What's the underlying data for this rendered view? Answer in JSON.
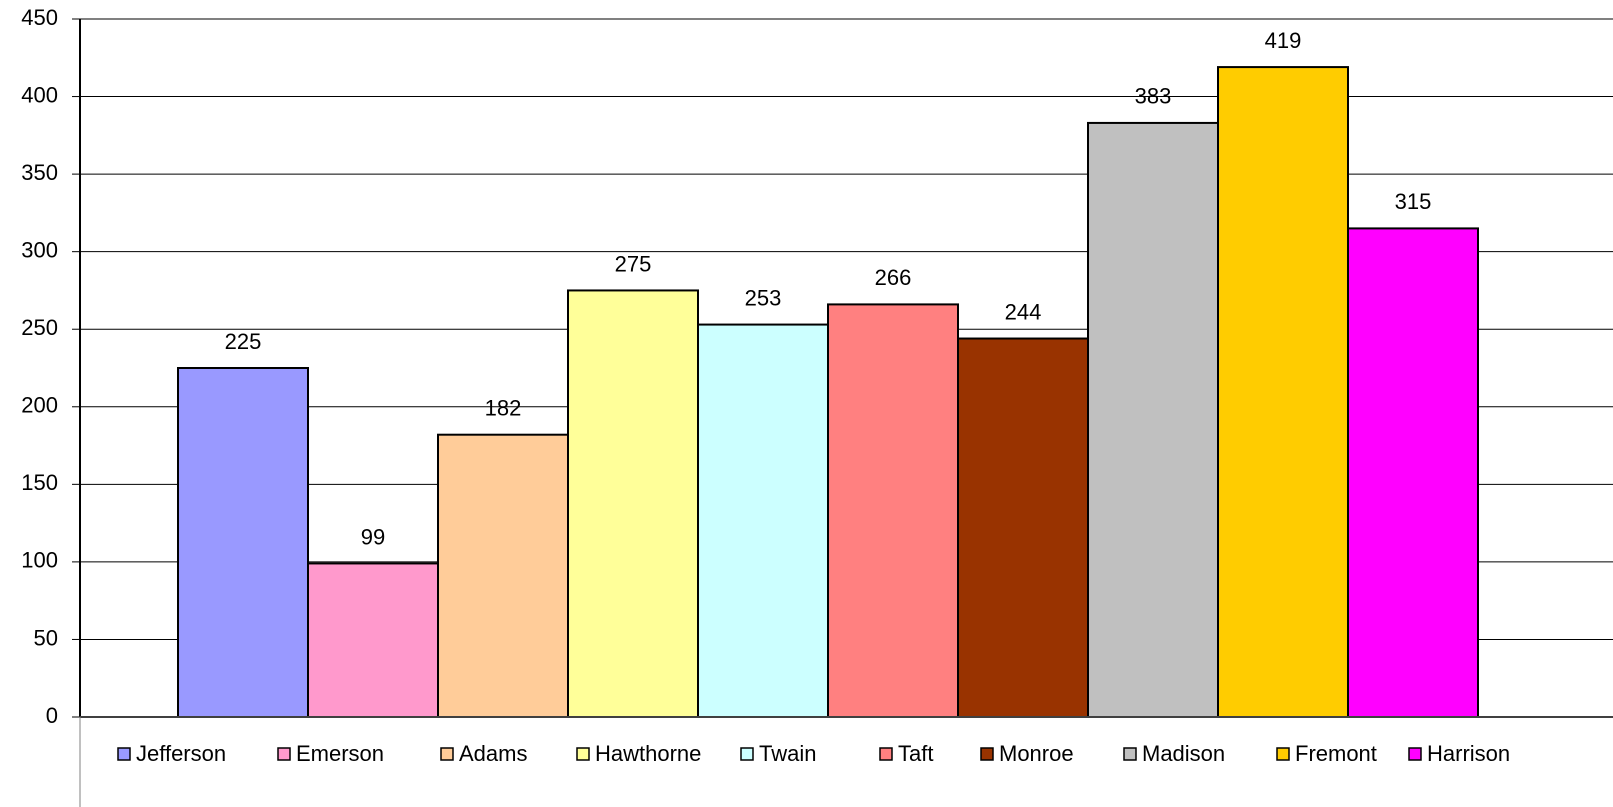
{
  "chart_data": {
    "type": "bar",
    "series": [
      {
        "name": "Jefferson",
        "color": "#9999ff",
        "values": [
          225
        ]
      },
      {
        "name": "Emerson",
        "color": "#ff99cc",
        "values": [
          99
        ]
      },
      {
        "name": "Adams",
        "color": "#ffcc99",
        "values": [
          182
        ]
      },
      {
        "name": "Hawthorne",
        "color": "#ffff99",
        "values": [
          275
        ]
      },
      {
        "name": "Twain",
        "color": "#ccffff",
        "values": [
          253
        ]
      },
      {
        "name": "Taft",
        "color": "#ff8080",
        "values": [
          266
        ]
      },
      {
        "name": "Monroe",
        "color": "#993300",
        "values": [
          244
        ]
      },
      {
        "name": "Madison",
        "color": "#c0c0c0",
        "values": [
          383
        ]
      },
      {
        "name": "Fremont",
        "color": "#ffcc00",
        "values": [
          419
        ]
      },
      {
        "name": "Harrison",
        "color": "#ff00ff",
        "values": [
          315
        ]
      }
    ],
    "ylim": [
      0,
      450
    ],
    "yticks": [
      0,
      50,
      100,
      150,
      200,
      250,
      300,
      350,
      400,
      450
    ],
    "grid": true,
    "legend": "bottom"
  }
}
